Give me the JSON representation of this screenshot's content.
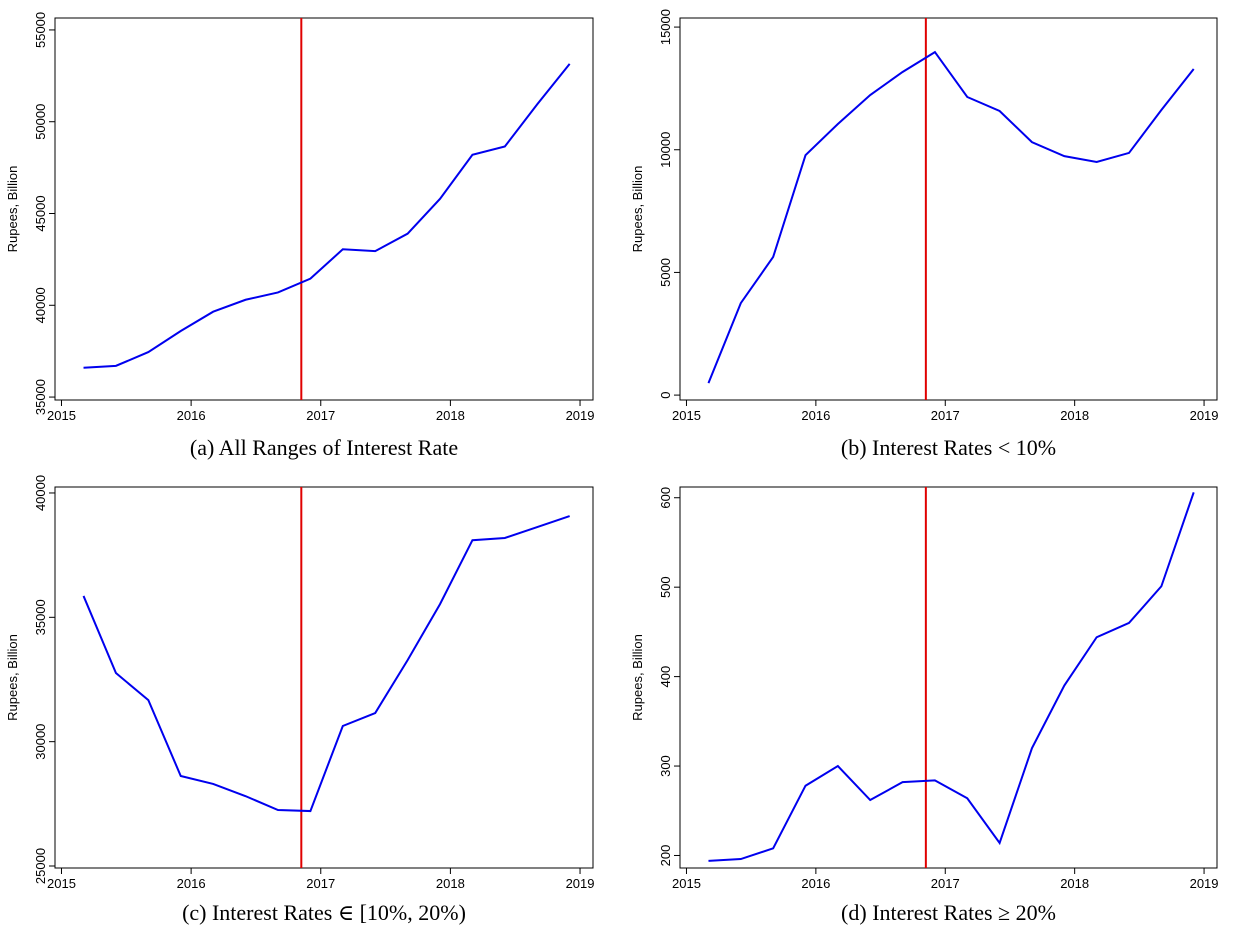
{
  "chart_data": [
    {
      "type": "line",
      "title": "(a) All Ranges of Interest Rate",
      "ylabel": "Rupees, Billion",
      "color": "#0000ee",
      "x": [
        2015.17,
        2015.42,
        2015.67,
        2015.92,
        2016.17,
        2016.42,
        2016.67,
        2016.92,
        2017.17,
        2017.42,
        2017.67,
        2017.92,
        2018.17,
        2018.42,
        2018.67,
        2018.92
      ],
      "values": [
        36600,
        36700,
        37450,
        38600,
        39650,
        40300,
        40700,
        41450,
        43050,
        42950,
        43900,
        45800,
        48200,
        48650,
        50950,
        53150
      ],
      "xlim": [
        2014.95,
        2019.1
      ],
      "xticks": [
        2015,
        2016,
        2017,
        2018,
        2019
      ],
      "ylim": [
        34840,
        55650
      ],
      "yticks": [
        35000,
        40000,
        45000,
        50000,
        55000
      ],
      "vline": 2016.85,
      "vline_color": "#e00000"
    },
    {
      "type": "line",
      "title": "(b) Interest Rates < 10%",
      "ylabel": "Rupees, Billion",
      "color": "#0000ee",
      "x": [
        2015.17,
        2015.42,
        2015.67,
        2015.92,
        2016.17,
        2016.42,
        2016.67,
        2016.92,
        2017.17,
        2017.42,
        2017.67,
        2017.92,
        2018.17,
        2018.42,
        2018.67,
        2018.92
      ],
      "values": [
        490,
        3750,
        5630,
        9780,
        11050,
        12230,
        13170,
        13980,
        12150,
        11580,
        10310,
        9740,
        9500,
        9870,
        11620,
        13290
      ],
      "xlim": [
        2014.95,
        2019.1
      ],
      "xticks": [
        2015,
        2016,
        2017,
        2018,
        2019
      ],
      "ylim": [
        -200,
        15370
      ],
      "yticks": [
        0,
        5000,
        10000,
        15000
      ],
      "vline": 2016.85,
      "vline_color": "#e00000"
    },
    {
      "type": "line",
      "title": "(c) Interest Rates ∈ [10%, 20%)",
      "ylabel": "Rupees, Billion",
      "color": "#0000ee",
      "x": [
        2015.17,
        2015.42,
        2015.67,
        2015.92,
        2016.17,
        2016.42,
        2016.67,
        2016.92,
        2017.17,
        2017.42,
        2017.67,
        2017.92,
        2018.17,
        2018.42,
        2018.67,
        2018.92
      ],
      "values": [
        35860,
        32760,
        31670,
        28620,
        28300,
        27810,
        27250,
        27210,
        30630,
        31150,
        33280,
        35530,
        38100,
        38190,
        38630,
        39070
      ],
      "xlim": [
        2014.95,
        2019.1
      ],
      "xticks": [
        2015,
        2016,
        2017,
        2018,
        2019
      ],
      "ylim": [
        24920,
        40240
      ],
      "yticks": [
        25000,
        30000,
        35000,
        40000
      ],
      "vline": 2016.85,
      "vline_color": "#e00000"
    },
    {
      "type": "line",
      "title": "(d) Interest Rates ≥ 20%",
      "ylabel": "Rupees, Billion",
      "color": "#0000ee",
      "x": [
        2015.17,
        2015.42,
        2015.67,
        2015.92,
        2016.17,
        2016.42,
        2016.67,
        2016.92,
        2017.17,
        2017.42,
        2017.67,
        2017.92,
        2018.17,
        2018.42,
        2018.67,
        2018.92
      ],
      "values": [
        194,
        196,
        208,
        278,
        300,
        262,
        282,
        284,
        264,
        214,
        320,
        390,
        444,
        460,
        501,
        606
      ],
      "xlim": [
        2014.95,
        2019.1
      ],
      "xticks": [
        2015,
        2016,
        2017,
        2018,
        2019
      ],
      "ylim": [
        186,
        612
      ],
      "yticks": [
        200,
        300,
        400,
        500,
        600
      ],
      "vline": 2016.85,
      "vline_color": "#e00000"
    }
  ]
}
